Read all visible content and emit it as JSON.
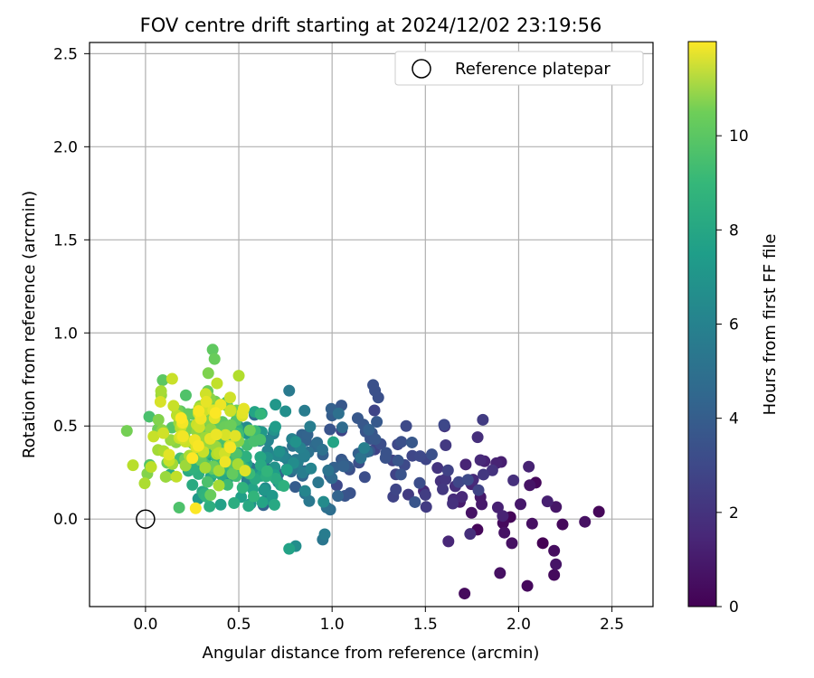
{
  "chart_data": {
    "type": "scatter",
    "title": "FOV centre drift starting at 2024/12/02 23:19:56",
    "xlabel": "Angular distance from reference (arcmin)",
    "ylabel": "Rotation from reference (arcmin)",
    "xlim": [
      -0.3,
      2.72
    ],
    "ylim": [
      -0.47,
      2.56
    ],
    "xticks": [
      "0.0",
      "0.5",
      "1.0",
      "1.5",
      "2.0",
      "2.5"
    ],
    "xtick_values": [
      0,
      0.5,
      1,
      1.5,
      2,
      2.5
    ],
    "yticks": [
      "0.0",
      "0.5",
      "1.0",
      "1.5",
      "2.0",
      "2.5"
    ],
    "ytick_values": [
      0,
      0.5,
      1,
      1.5,
      2,
      2.5
    ],
    "grid": true,
    "legend": {
      "position": "upper-right",
      "entries": [
        "Reference platepar"
      ]
    },
    "reference_point": {
      "x": 0.0,
      "y": 0.0
    },
    "colorbar": {
      "label": "Hours from first FF file",
      "colormap": "viridis",
      "range": [
        0,
        12
      ],
      "ticks": [
        "0",
        "2",
        "4",
        "6",
        "8",
        "10"
      ],
      "tick_values": [
        0,
        2,
        4,
        6,
        8,
        10
      ]
    },
    "point_count": 450,
    "points_visible_sample": [
      {
        "x": 2.43,
        "y": 0.04,
        "hours": 0.2
      },
      {
        "x": 1.71,
        "y": -0.4,
        "hours": 0.3
      },
      {
        "x": 2.19,
        "y": -0.3,
        "hours": 0.3
      },
      {
        "x": 2.19,
        "y": -0.17,
        "hours": 0.4
      },
      {
        "x": 1.9,
        "y": -0.29,
        "hours": 0.5
      },
      {
        "x": 2.01,
        "y": 0.08,
        "hours": 0.8
      },
      {
        "x": 1.88,
        "y": 0.3,
        "hours": 1.2
      },
      {
        "x": 1.78,
        "y": 0.44,
        "hours": 1.6
      },
      {
        "x": 1.74,
        "y": -0.08,
        "hours": 1.6
      },
      {
        "x": 1.5,
        "y": 0.13,
        "hours": 2.2
      },
      {
        "x": 1.43,
        "y": 0.34,
        "hours": 2.6
      },
      {
        "x": 1.22,
        "y": 0.72,
        "hours": 3.0
      },
      {
        "x": 1.23,
        "y": 0.69,
        "hours": 3.0
      },
      {
        "x": 1.18,
        "y": 0.47,
        "hours": 3.2
      },
      {
        "x": 1.05,
        "y": 0.61,
        "hours": 3.3
      },
      {
        "x": 0.95,
        "y": -0.11,
        "hours": 4.7
      },
      {
        "x": 0.77,
        "y": 0.69,
        "hours": 4.9
      },
      {
        "x": 0.77,
        "y": -0.16,
        "hours": 6.9
      },
      {
        "x": 0.5,
        "y": 0.77,
        "hours": 10.6
      },
      {
        "x": 0.37,
        "y": 0.86,
        "hours": 9.2
      },
      {
        "x": 0.36,
        "y": 0.91,
        "hours": 9.0
      },
      {
        "x": 0.52,
        "y": 0.57,
        "hours": 11.5
      },
      {
        "x": 0.08,
        "y": 0.63,
        "hours": 11.3
      },
      {
        "x": 0.03,
        "y": 0.28,
        "hours": 10.8
      },
      {
        "x": 0.02,
        "y": 0.55,
        "hours": 8.5
      }
    ]
  }
}
